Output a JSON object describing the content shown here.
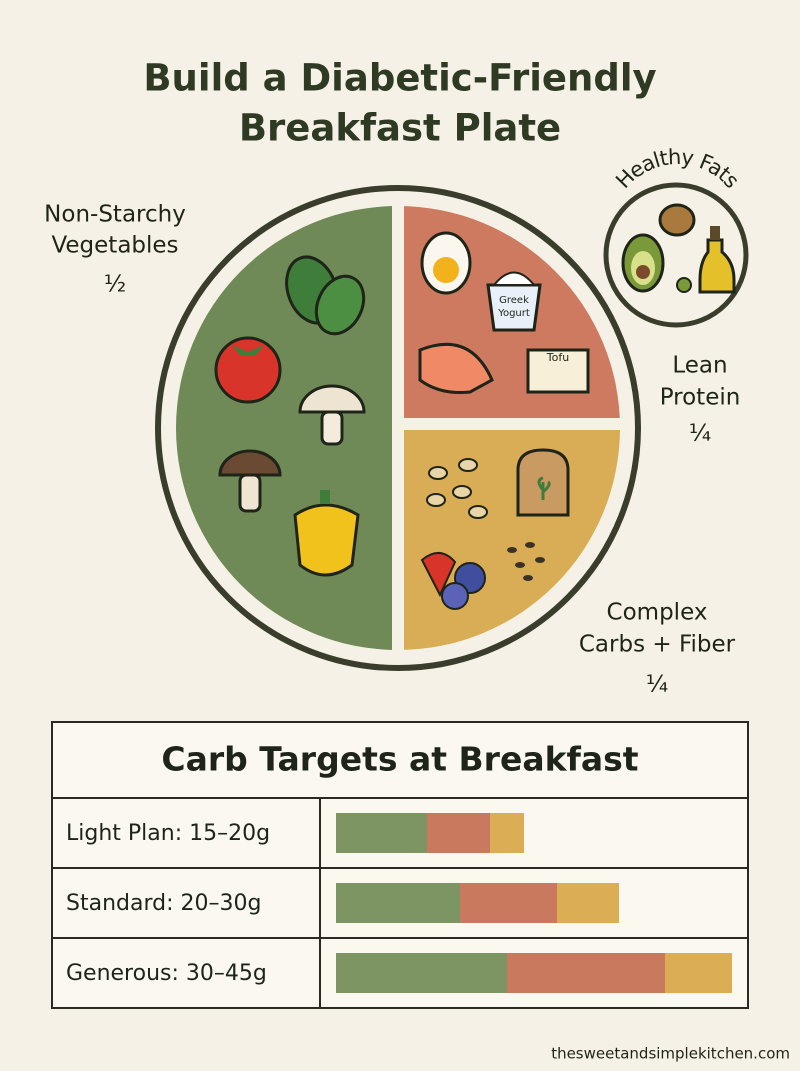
{
  "header": {
    "title": [
      "Build a Diabetic-Friendly",
      "Breakfast Plate"
    ]
  },
  "plate": {
    "vegetables": {
      "label": [
        "Non-Starchy",
        "Vegetables"
      ],
      "portion": "½"
    },
    "protein": {
      "label": [
        "Lean",
        "Protein"
      ],
      "portion": "¼",
      "items": {
        "yogurt": [
          "Greek",
          "Yogurt"
        ],
        "tofu": "Tofu"
      }
    },
    "carbs": {
      "label": [
        "Complex",
        "Carbs + Fiber"
      ],
      "portion": "¼"
    }
  },
  "healthy_fats": {
    "label": "Healthy Fats"
  },
  "table": {
    "title": "Carb Targets at Breakfast",
    "rows": [
      "Light Plan: 15–20g",
      "Standard: 20–30g",
      "Generous: 30–45g"
    ]
  },
  "footer": "thesweetandsimplekitchen.com"
}
